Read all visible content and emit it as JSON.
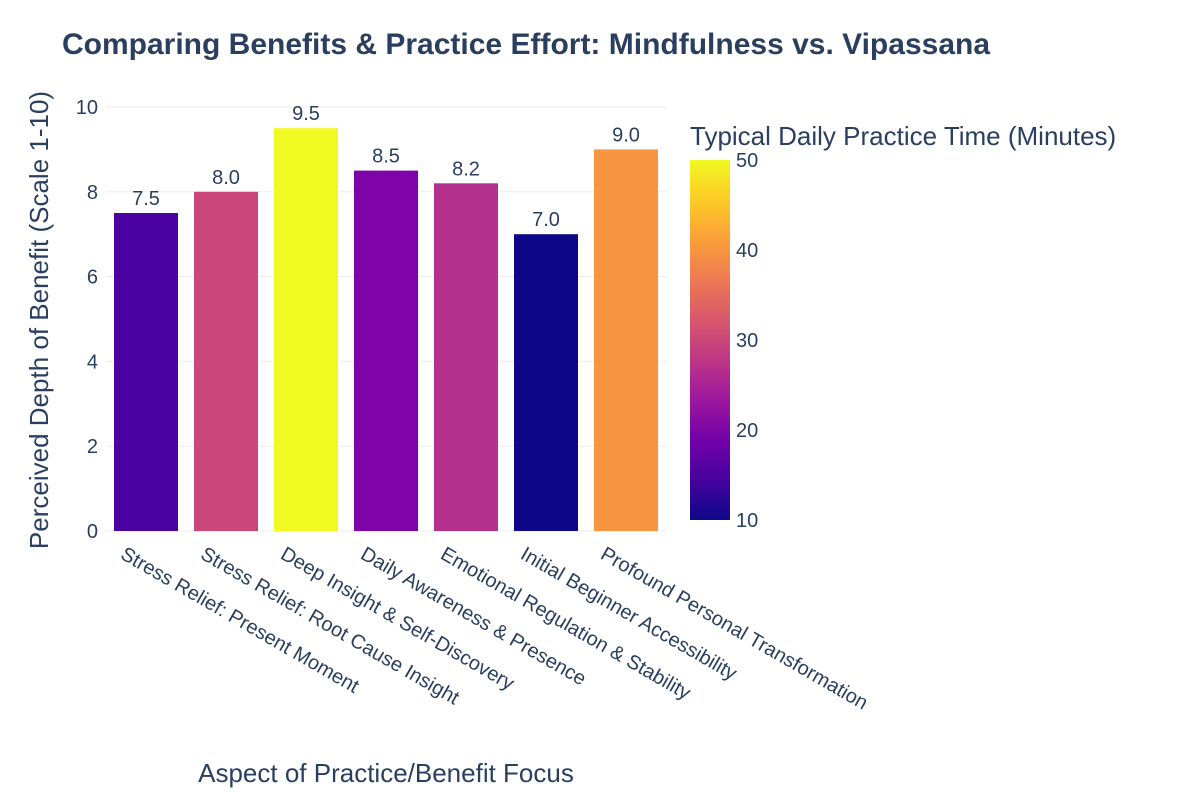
{
  "chart_data": {
    "type": "bar",
    "title": "Comparing Benefits & Practice Effort: Mindfulness vs. Vipassana",
    "xlabel": "Aspect of Practice/Benefit Focus",
    "ylabel": "Perceived Depth of Benefit (Scale 1-10)",
    "ylim": [
      0,
      10
    ],
    "yticks": [
      0,
      2,
      4,
      6,
      8,
      10
    ],
    "categories": [
      "Stress Relief: Present Moment",
      "Stress Relief: Root Cause Insight",
      "Deep Insight & Self-Discovery",
      "Daily Awareness & Presence",
      "Emotional Regulation & Stability",
      "Initial Beginner Accessibility",
      "Profound Personal Transformation"
    ],
    "values": [
      7.5,
      8.0,
      9.5,
      8.5,
      8.2,
      7.0,
      9.0
    ],
    "data_labels": [
      "7.5",
      "8.0",
      "9.5",
      "8.5",
      "8.2",
      "7.0",
      "9.0"
    ],
    "color_values": [
      15,
      30,
      50,
      20,
      25,
      10,
      40
    ],
    "colors": [
      "#4a02a0",
      "#cb4679",
      "#f0f921",
      "#7e03a8",
      "#b52f8c",
      "#0d0887",
      "#f89540"
    ],
    "grid": true,
    "colorbar": {
      "title": "Typical Daily Practice Time (Minutes)",
      "range": [
        10,
        50
      ],
      "ticks": [
        10,
        20,
        30,
        40,
        50
      ],
      "colorscale": "Plasma",
      "stops": [
        "#0d0887",
        "#46039f",
        "#7201a8",
        "#9c179e",
        "#bd3786",
        "#d8576b",
        "#ed7953",
        "#fb9f3a",
        "#fdca26",
        "#f0f921"
      ]
    }
  }
}
